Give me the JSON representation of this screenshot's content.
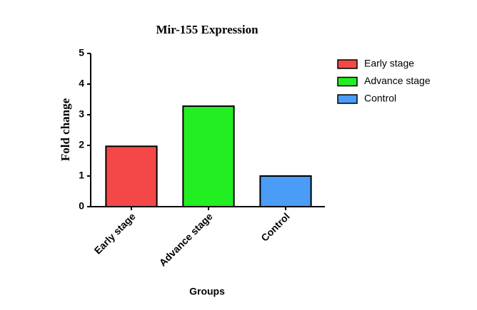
{
  "chart_data": {
    "type": "bar",
    "title": "Mir-155 Expression",
    "x_label": "Groups",
    "y_label": "Fold change",
    "categories": [
      "Early stage",
      "Advance stage",
      "Control"
    ],
    "values": [
      1.97,
      3.28,
      1.0
    ],
    "colors": [
      "#f44848",
      "#22ee22",
      "#4a9cf6"
    ],
    "ylim": [
      0,
      5
    ],
    "yticks": [
      0,
      1,
      2,
      3,
      4,
      5
    ],
    "legend": "right"
  }
}
